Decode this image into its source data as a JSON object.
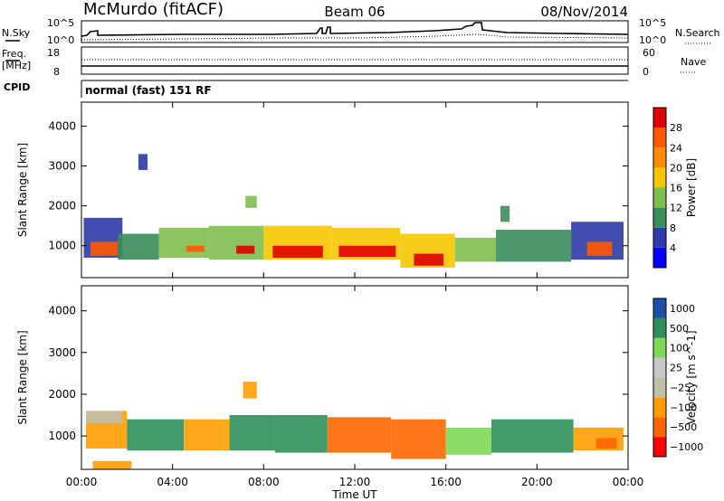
{
  "header": {
    "station": "McMurdo (fitACF)",
    "beam": "Beam 06",
    "date": "08/Nov/2014"
  },
  "strip": {
    "nsky_label": "N.Sky",
    "nsky_ticks": [
      "10^5",
      "10^0"
    ],
    "nsearch_label": "N.Search",
    "nsearch_ticks": [
      "10^5",
      "10^0"
    ],
    "freq_label": "Freq.",
    "freq_unit": "[MHz]",
    "freq_ticks": [
      "18",
      "8"
    ],
    "nave_label": "Nave",
    "nave_ticks": [
      "60",
      "0"
    ],
    "cpid_label": "CPID",
    "cpid_value": "normal (fast) 151 RF"
  },
  "colors": {
    "power": [
      "#0000ff",
      "#2e3aa8",
      "#3a8c5a",
      "#7fbf4f",
      "#f5c600",
      "#ff8c00",
      "#ff5a00",
      "#e00000"
    ],
    "velocity": [
      "#ff0000",
      "#ff6600",
      "#ff9d00",
      "#c0c0a8",
      "#c8c8c8",
      "#7ed957",
      "#2f8f5a",
      "#1c4faa"
    ]
  },
  "chart_data": [
    {
      "type": "heatmap",
      "panel": "power",
      "ylabel": "Slant Range [km]",
      "xlabel": "Time UT",
      "x_ticks": [
        "00:00",
        "04:00",
        "08:00",
        "12:00",
        "16:00",
        "20:00",
        "00:00"
      ],
      "x_tick_hours": [
        0,
        4,
        8,
        12,
        16,
        20,
        24
      ],
      "y_ticks": [
        1000,
        2000,
        3000,
        4000
      ],
      "ylim": [
        200,
        4600
      ],
      "xlim": [
        0,
        24
      ],
      "colorbar_label": "Power [dB]",
      "colorbar_ticks": [
        "4",
        "8",
        "12",
        "16",
        "20",
        "24",
        "28"
      ],
      "regions": [
        {
          "t0": 0.1,
          "t1": 1.8,
          "r0": 700,
          "r1": 1700,
          "level": 1
        },
        {
          "t0": 0.4,
          "t1": 1.6,
          "r0": 750,
          "r1": 1100,
          "level": 6
        },
        {
          "t0": 1.6,
          "t1": 3.4,
          "r0": 650,
          "r1": 1300,
          "level": 2
        },
        {
          "t0": 3.4,
          "t1": 5.6,
          "r0": 700,
          "r1": 1450,
          "level": 3
        },
        {
          "t0": 4.6,
          "t1": 5.4,
          "r0": 850,
          "r1": 1000,
          "level": 6
        },
        {
          "t0": 5.6,
          "t1": 8.0,
          "r0": 650,
          "r1": 1500,
          "level": 3
        },
        {
          "t0": 6.8,
          "t1": 7.6,
          "r0": 800,
          "r1": 1000,
          "level": 7
        },
        {
          "t0": 7.2,
          "t1": 7.7,
          "r0": 1950,
          "r1": 2250,
          "level": 3
        },
        {
          "t0": 8.0,
          "t1": 11.0,
          "r0": 650,
          "r1": 1500,
          "level": 4
        },
        {
          "t0": 8.4,
          "t1": 10.6,
          "r0": 700,
          "r1": 1000,
          "level": 7
        },
        {
          "t0": 11.0,
          "t1": 14.0,
          "r0": 650,
          "r1": 1450,
          "level": 4
        },
        {
          "t0": 11.3,
          "t1": 13.8,
          "r0": 720,
          "r1": 1000,
          "level": 7
        },
        {
          "t0": 14.0,
          "t1": 16.4,
          "r0": 450,
          "r1": 1300,
          "level": 4
        },
        {
          "t0": 14.6,
          "t1": 15.9,
          "r0": 500,
          "r1": 800,
          "level": 7
        },
        {
          "t0": 16.4,
          "t1": 18.2,
          "r0": 600,
          "r1": 1200,
          "level": 3
        },
        {
          "t0": 18.2,
          "t1": 21.5,
          "r0": 600,
          "r1": 1400,
          "level": 2
        },
        {
          "t0": 18.4,
          "t1": 18.8,
          "r0": 1600,
          "r1": 2000,
          "level": 2
        },
        {
          "t0": 21.5,
          "t1": 23.8,
          "r0": 650,
          "r1": 1600,
          "level": 1
        },
        {
          "t0": 22.2,
          "t1": 23.3,
          "r0": 750,
          "r1": 1100,
          "level": 6
        },
        {
          "t0": 2.5,
          "t1": 2.9,
          "r0": 2900,
          "r1": 3300,
          "level": 1
        }
      ]
    },
    {
      "type": "heatmap",
      "panel": "velocity",
      "ylabel": "Slant Range [km]",
      "xlabel": "Time UT",
      "x_ticks": [
        "00:00",
        "04:00",
        "08:00",
        "12:00",
        "16:00",
        "20:00",
        "00:00"
      ],
      "x_tick_hours": [
        0,
        4,
        8,
        12,
        16,
        20,
        24
      ],
      "y_ticks": [
        1000,
        2000,
        3000,
        4000
      ],
      "ylim": [
        200,
        4600
      ],
      "xlim": [
        0,
        24
      ],
      "colorbar_label": "Velocity [m s^-1]",
      "colorbar_ticks": [
        "1000",
        "500",
        "100",
        "25",
        "−25",
        "−100",
        "−500",
        "−1000"
      ],
      "regions": [
        {
          "t0": 0.2,
          "t1": 2.0,
          "r0": 700,
          "r1": 1600,
          "level": 2
        },
        {
          "t0": 0.2,
          "t1": 1.8,
          "r0": 1300,
          "r1": 1600,
          "level": 3
        },
        {
          "t0": 2.0,
          "t1": 4.5,
          "r0": 650,
          "r1": 1400,
          "level": 6
        },
        {
          "t0": 4.5,
          "t1": 6.5,
          "r0": 650,
          "r1": 1400,
          "level": 2
        },
        {
          "t0": 6.5,
          "t1": 8.5,
          "r0": 650,
          "r1": 1500,
          "level": 6
        },
        {
          "t0": 7.1,
          "t1": 7.7,
          "r0": 1900,
          "r1": 2300,
          "level": 2
        },
        {
          "t0": 8.5,
          "t1": 10.8,
          "r0": 600,
          "r1": 1500,
          "level": 6
        },
        {
          "t0": 10.8,
          "t1": 13.6,
          "r0": 600,
          "r1": 1450,
          "level": 1
        },
        {
          "t0": 13.6,
          "t1": 16.0,
          "r0": 450,
          "r1": 1400,
          "level": 1
        },
        {
          "t0": 16.0,
          "t1": 18.0,
          "r0": 550,
          "r1": 1200,
          "level": 5
        },
        {
          "t0": 18.0,
          "t1": 21.6,
          "r0": 600,
          "r1": 1400,
          "level": 6
        },
        {
          "t0": 21.6,
          "t1": 23.8,
          "r0": 650,
          "r1": 1200,
          "level": 2
        },
        {
          "t0": 22.6,
          "t1": 23.5,
          "r0": 700,
          "r1": 950,
          "level": 1
        },
        {
          "t0": 0.5,
          "t1": 2.2,
          "r0": 200,
          "r1": 400,
          "level": 2
        }
      ]
    }
  ]
}
